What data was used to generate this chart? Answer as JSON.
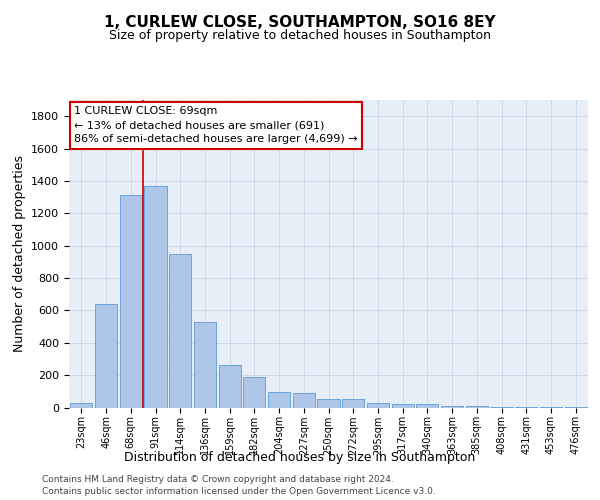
{
  "title1": "1, CURLEW CLOSE, SOUTHAMPTON, SO16 8EY",
  "title2": "Size of property relative to detached houses in Southampton",
  "xlabel": "Distribution of detached houses by size in Southampton",
  "ylabel": "Number of detached properties",
  "categories": [
    "23sqm",
    "46sqm",
    "68sqm",
    "91sqm",
    "114sqm",
    "136sqm",
    "159sqm",
    "182sqm",
    "204sqm",
    "227sqm",
    "250sqm",
    "272sqm",
    "295sqm",
    "317sqm",
    "340sqm",
    "363sqm",
    "385sqm",
    "408sqm",
    "431sqm",
    "453sqm",
    "476sqm"
  ],
  "values": [
    30,
    640,
    1310,
    1370,
    950,
    530,
    265,
    190,
    95,
    90,
    50,
    50,
    25,
    20,
    20,
    10,
    10,
    5,
    5,
    2,
    5
  ],
  "bar_color": "#aec6e8",
  "bar_edge_color": "#5b9bd5",
  "vline_index": 2.5,
  "vline_color": "#cc0000",
  "annotation_text": "1 CURLEW CLOSE: 69sqm\n← 13% of detached houses are smaller (691)\n86% of semi-detached houses are larger (4,699) →",
  "annotation_box_color": "#cc0000",
  "ylim": [
    0,
    1900
  ],
  "yticks": [
    0,
    200,
    400,
    600,
    800,
    1000,
    1200,
    1400,
    1600,
    1800
  ],
  "grid_color": "#d0d8e8",
  "background_color": "#e8eef8",
  "footer1": "Contains HM Land Registry data © Crown copyright and database right 2024.",
  "footer2": "Contains public sector information licensed under the Open Government Licence v3.0.",
  "title1_fontsize": 11,
  "title2_fontsize": 9,
  "xlabel_fontsize": 9,
  "ylabel_fontsize": 9,
  "tick_fontsize": 8,
  "annotation_fontsize": 8
}
